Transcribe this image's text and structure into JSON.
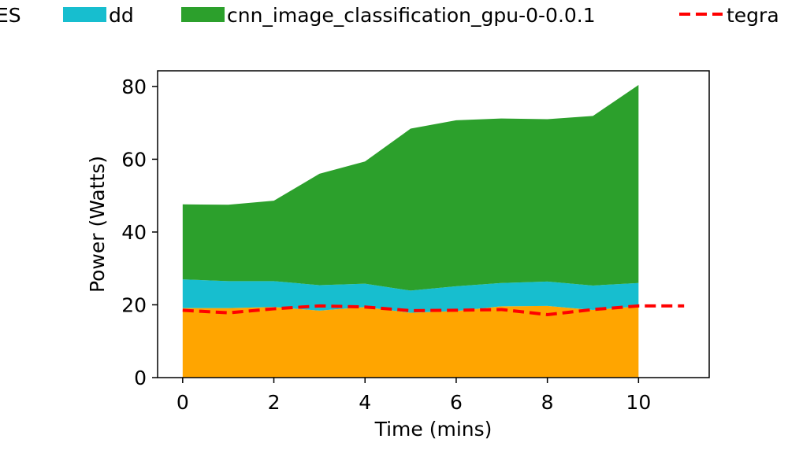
{
  "chart_data": {
    "type": "area",
    "xlabel": "Time (mins)",
    "ylabel": "Power (Watts)",
    "xlim": [
      -0.55,
      11.55
    ],
    "ylim": [
      0,
      84.3
    ],
    "x_ticks": [
      0,
      2,
      4,
      6,
      8,
      10
    ],
    "y_ticks": [
      0,
      20,
      40,
      60,
      80
    ],
    "grid": false,
    "legend_position": "top",
    "x": [
      0,
      1,
      2,
      3,
      4,
      5,
      6,
      7,
      8,
      9,
      10
    ],
    "stacked_series": [
      {
        "name": "ES",
        "color": "#ffa500",
        "values": [
          19.1,
          19.1,
          19.4,
          18.4,
          19.4,
          17.8,
          18.3,
          19.6,
          19.7,
          18.6,
          19.6
        ]
      },
      {
        "name": "dd",
        "color": "#17becf",
        "values": [
          7.9,
          7.4,
          7.1,
          7.0,
          6.4,
          6.1,
          6.8,
          6.4,
          6.7,
          6.7,
          6.4
        ]
      },
      {
        "name": "cnn_image_classification_gpu-0-0.0.1",
        "color": "#2ca02c",
        "values": [
          20.6,
          21.0,
          22.1,
          30.6,
          33.6,
          44.5,
          45.6,
          45.2,
          44.6,
          46.6,
          54.4
        ]
      }
    ],
    "line_series": [
      {
        "name": "tegra",
        "color": "#ff0000",
        "style": "dashed",
        "x": [
          0,
          1,
          2,
          3,
          4,
          5,
          6,
          7,
          8,
          9,
          10,
          11
        ],
        "values": [
          18.5,
          17.8,
          18.9,
          19.7,
          19.4,
          18.4,
          18.5,
          18.7,
          17.3,
          18.7,
          19.7,
          19.7
        ]
      }
    ]
  }
}
